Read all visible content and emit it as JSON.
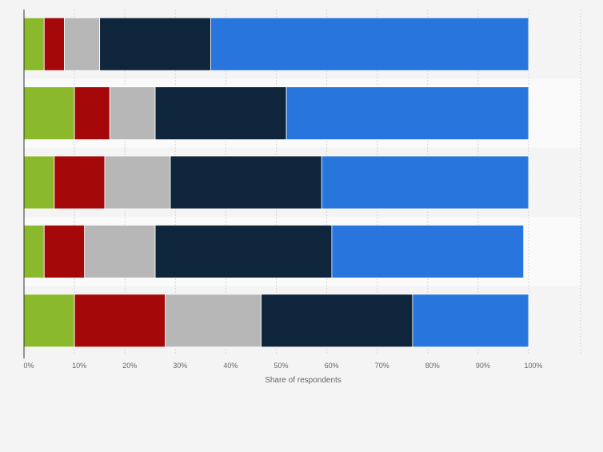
{
  "chart_data": {
    "type": "bar",
    "orientation": "horizontal",
    "stacked": true,
    "xlabel": "Share of respondents",
    "xlim": [
      0,
      100
    ],
    "x_ticks": [
      "0%",
      "10%",
      "20%",
      "30%",
      "40%",
      "50%",
      "60%",
      "70%",
      "80%",
      "90%",
      "100%"
    ],
    "grid": true,
    "legend": "none",
    "categories": [
      "",
      "",
      "",
      "",
      ""
    ],
    "series": [
      {
        "color": "#8aba2b",
        "values": [
          4,
          10,
          6,
          4,
          10
        ]
      },
      {
        "color": "#a50809",
        "values": [
          4,
          7,
          10,
          8,
          18
        ]
      },
      {
        "color": "#b7b7b7",
        "values": [
          7,
          9,
          13,
          14,
          19
        ]
      },
      {
        "color": "#0f253b",
        "values": [
          22,
          26,
          30,
          35,
          30
        ]
      },
      {
        "color": "#2876dd",
        "values": [
          63,
          48,
          41,
          38,
          23
        ]
      }
    ]
  }
}
